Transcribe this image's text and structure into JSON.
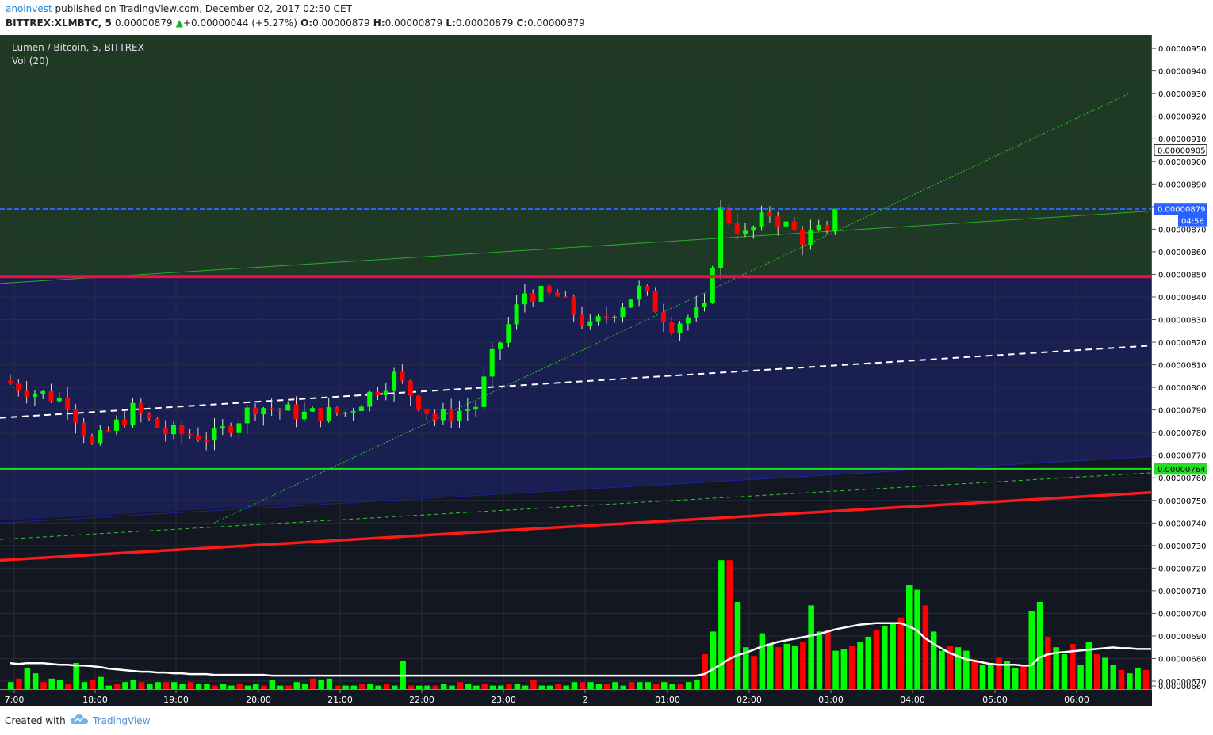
{
  "header": {
    "author": "anoinvest",
    "published_text": "published on TradingView.com, December 02, 2017 02:50 CET",
    "symbol": "BITTREX:XLMBTC, 5",
    "last_price": "0.00000879",
    "change_arrow": "▲",
    "change": "+0.00000044 (+5.27%)",
    "o_label": "O:",
    "o_value": "0.00000879",
    "h_label": "H:",
    "h_value": "0.00000879",
    "l_label": "L:",
    "l_value": "0.00000879",
    "c_label": "C:",
    "c_value": "0.00000879"
  },
  "legend": {
    "title": "Lumen / Bitcoin, 5, BITTREX",
    "volume": "Vol (20)"
  },
  "footer": {
    "created_with": "Created with",
    "brand": "TradingView"
  },
  "colors": {
    "up": "#00ff00",
    "down": "#ff0000",
    "background": "#131722",
    "zone_green": "#1e3a24",
    "zone_blue": "#1a1f52",
    "resistance": "#e8143c",
    "support": "#22dd22",
    "current_price": "#2962ff"
  },
  "chart_data": {
    "type": "candlestick",
    "title": "Lumen / Bitcoin, 5, BITTREX",
    "y_ticks": [
      "0.00000950",
      "0.00000940",
      "0.00000930",
      "0.00000920",
      "0.00000910",
      "0.00000900",
      "0.00000890",
      "0.00000880",
      "0.00000870",
      "0.00000860",
      "0.00000850",
      "0.00000840",
      "0.00000830",
      "0.00000820",
      "0.00000810",
      "0.00000800",
      "0.00000790",
      "0.00000780",
      "0.00000770",
      "0.00000760",
      "0.00000750",
      "0.00000740",
      "0.00000730",
      "0.00000720",
      "0.00000710",
      "0.00000700",
      "0.00000690",
      "0.00000680",
      "0.00000670",
      "0.00000667"
    ],
    "x_ticks": [
      "7:00",
      "18:00",
      "19:00",
      "20:00",
      "21:00",
      "22:00",
      "23:00",
      "2",
      "01:00",
      "02:00",
      "03:00",
      "04:00",
      "05:00",
      "06:00"
    ],
    "price_labels": {
      "resistance_dotted": "0.00000905",
      "current": "0.00000879",
      "countdown": "04:56",
      "support": "0.00000764"
    },
    "ylim": [
      6.665e-06,
      9.56e-06
    ],
    "levels": {
      "dotted_white": 9.05e-06,
      "current": 8.79e-06,
      "resistance": 8.49e-06,
      "support": 7.64e-06
    },
    "ohlc_segments": [
      {
        "t0": 0,
        "t1": 4,
        "p0": 8.03e-06,
        "p1": 7.98e-06
      },
      {
        "t0": 4,
        "t1": 8,
        "p0": 7.98e-06,
        "p1": 7.94e-06
      },
      {
        "t0": 8,
        "t1": 11,
        "p0": 7.94e-06,
        "p1": 7.74e-06
      },
      {
        "t0": 11,
        "t1": 16,
        "p0": 7.74e-06,
        "p1": 7.9e-06
      },
      {
        "t0": 16,
        "t1": 20,
        "p0": 7.9e-06,
        "p1": 7.8e-06
      },
      {
        "t0": 20,
        "t1": 26,
        "p0": 7.8e-06,
        "p1": 7.78e-06
      },
      {
        "t0": 26,
        "t1": 31,
        "p0": 7.78e-06,
        "p1": 7.92e-06
      },
      {
        "t0": 31,
        "t1": 37,
        "p0": 7.92e-06,
        "p1": 7.88e-06
      },
      {
        "t0": 37,
        "t1": 42,
        "p0": 7.88e-06,
        "p1": 7.89e-06
      },
      {
        "t0": 42,
        "t1": 48,
        "p0": 7.89e-06,
        "p1": 8.05e-06
      },
      {
        "t0": 48,
        "t1": 53,
        "p0": 8.05e-06,
        "p1": 7.86e-06
      },
      {
        "t0": 53,
        "t1": 58,
        "p0": 7.86e-06,
        "p1": 7.92e-06
      },
      {
        "t0": 58,
        "t1": 60,
        "p0": 7.92e-06,
        "p1": 8.13e-06
      },
      {
        "t0": 60,
        "t1": 64,
        "p0": 8.13e-06,
        "p1": 8.42e-06
      },
      {
        "t0": 64,
        "t1": 68,
        "p0": 8.42e-06,
        "p1": 8.4e-06
      },
      {
        "t0": 68,
        "t1": 72,
        "p0": 8.4e-06,
        "p1": 8.26e-06
      },
      {
        "t0": 72,
        "t1": 78,
        "p0": 8.26e-06,
        "p1": 8.43e-06
      },
      {
        "t0": 78,
        "t1": 82,
        "p0": 8.43e-06,
        "p1": 8.28e-06
      },
      {
        "t0": 82,
        "t1": 86,
        "p0": 8.28e-06,
        "p1": 8.34e-06
      },
      {
        "t0": 86,
        "t1": 88,
        "p0": 8.34e-06,
        "p1": 8.78e-06
      },
      {
        "t0": 88,
        "t1": 91,
        "p0": 8.78e-06,
        "p1": 8.67e-06
      },
      {
        "t0": 91,
        "t1": 94,
        "p0": 8.67e-06,
        "p1": 8.77e-06
      },
      {
        "t0": 94,
        "t1": 98,
        "p0": 8.77e-06,
        "p1": 8.66e-06
      },
      {
        "t0": 98,
        "t1": 100,
        "p0": 8.66e-06,
        "p1": 8.69e-06
      },
      {
        "t0": 100,
        "t1": 101,
        "p0": 8.69e-06,
        "p1": 8.65e-06
      },
      {
        "t0": 101,
        "t1": 102,
        "p0": 8.66e-06,
        "p1": 8.79e-06
      }
    ],
    "volume": [
      4,
      6,
      12,
      9,
      4,
      6,
      5,
      3,
      15,
      4,
      5,
      7,
      2,
      3,
      4,
      5,
      4,
      3,
      4,
      4,
      4,
      3,
      4,
      3,
      3,
      2,
      3,
      2,
      3,
      2,
      3,
      2,
      5,
      2,
      2,
      4,
      3,
      6,
      5,
      6,
      2,
      2,
      2,
      3,
      3,
      2,
      3,
      2,
      16,
      2,
      2,
      2,
      2,
      3,
      2,
      4,
      3,
      2,
      3,
      2,
      2,
      3,
      3,
      2,
      5,
      2,
      2,
      3,
      2,
      4,
      4,
      4,
      3,
      3,
      4,
      2,
      4,
      4,
      4,
      3,
      4,
      3,
      3,
      4,
      5,
      20,
      33,
      74,
      74,
      50,
      24,
      19,
      32,
      26,
      24,
      26,
      25,
      27,
      48,
      33,
      34,
      22,
      23,
      25,
      27,
      30,
      34,
      36,
      38,
      41,
      60,
      57,
      48,
      33,
      22,
      25,
      24,
      22,
      17,
      14,
      15,
      18,
      16,
      12,
      13,
      45,
      50,
      30,
      24,
      20,
      26,
      14,
      27,
      20,
      18,
      14,
      11,
      9,
      12,
      11,
      13,
      8,
      10,
      14
    ],
    "volume_ma": [
      23,
      22,
      23,
      23,
      23,
      22,
      21,
      21,
      20,
      20,
      19,
      18,
      16,
      15,
      14,
      13,
      12,
      12,
      11,
      11,
      10,
      10,
      9,
      9,
      9,
      8,
      8,
      8,
      8,
      8,
      8,
      8,
      7,
      7,
      7,
      7,
      7,
      7,
      7,
      7,
      7,
      7,
      7,
      7,
      7,
      7,
      7,
      7,
      7,
      7,
      7,
      7,
      7,
      7,
      7,
      7,
      7,
      7,
      7,
      7,
      7,
      7,
      7,
      7,
      7,
      7,
      7,
      7,
      7,
      7,
      7,
      7,
      7,
      7,
      7,
      7,
      7,
      7,
      7,
      7,
      7,
      7,
      7,
      7,
      7,
      9,
      15,
      21,
      28,
      33,
      36,
      40,
      44,
      47,
      50,
      52,
      54,
      56,
      58,
      60,
      63,
      66,
      68,
      70,
      72,
      73,
      74,
      74,
      74,
      74,
      70,
      65,
      55,
      48,
      42,
      36,
      32,
      28,
      26,
      24,
      22,
      21,
      21,
      21,
      20,
      20,
      30,
      34,
      36,
      37,
      38,
      39,
      40,
      41,
      42,
      43,
      42,
      42,
      41,
      41,
      41,
      41,
      40,
      40,
      40,
      41,
      42,
      42,
      41
    ]
  }
}
